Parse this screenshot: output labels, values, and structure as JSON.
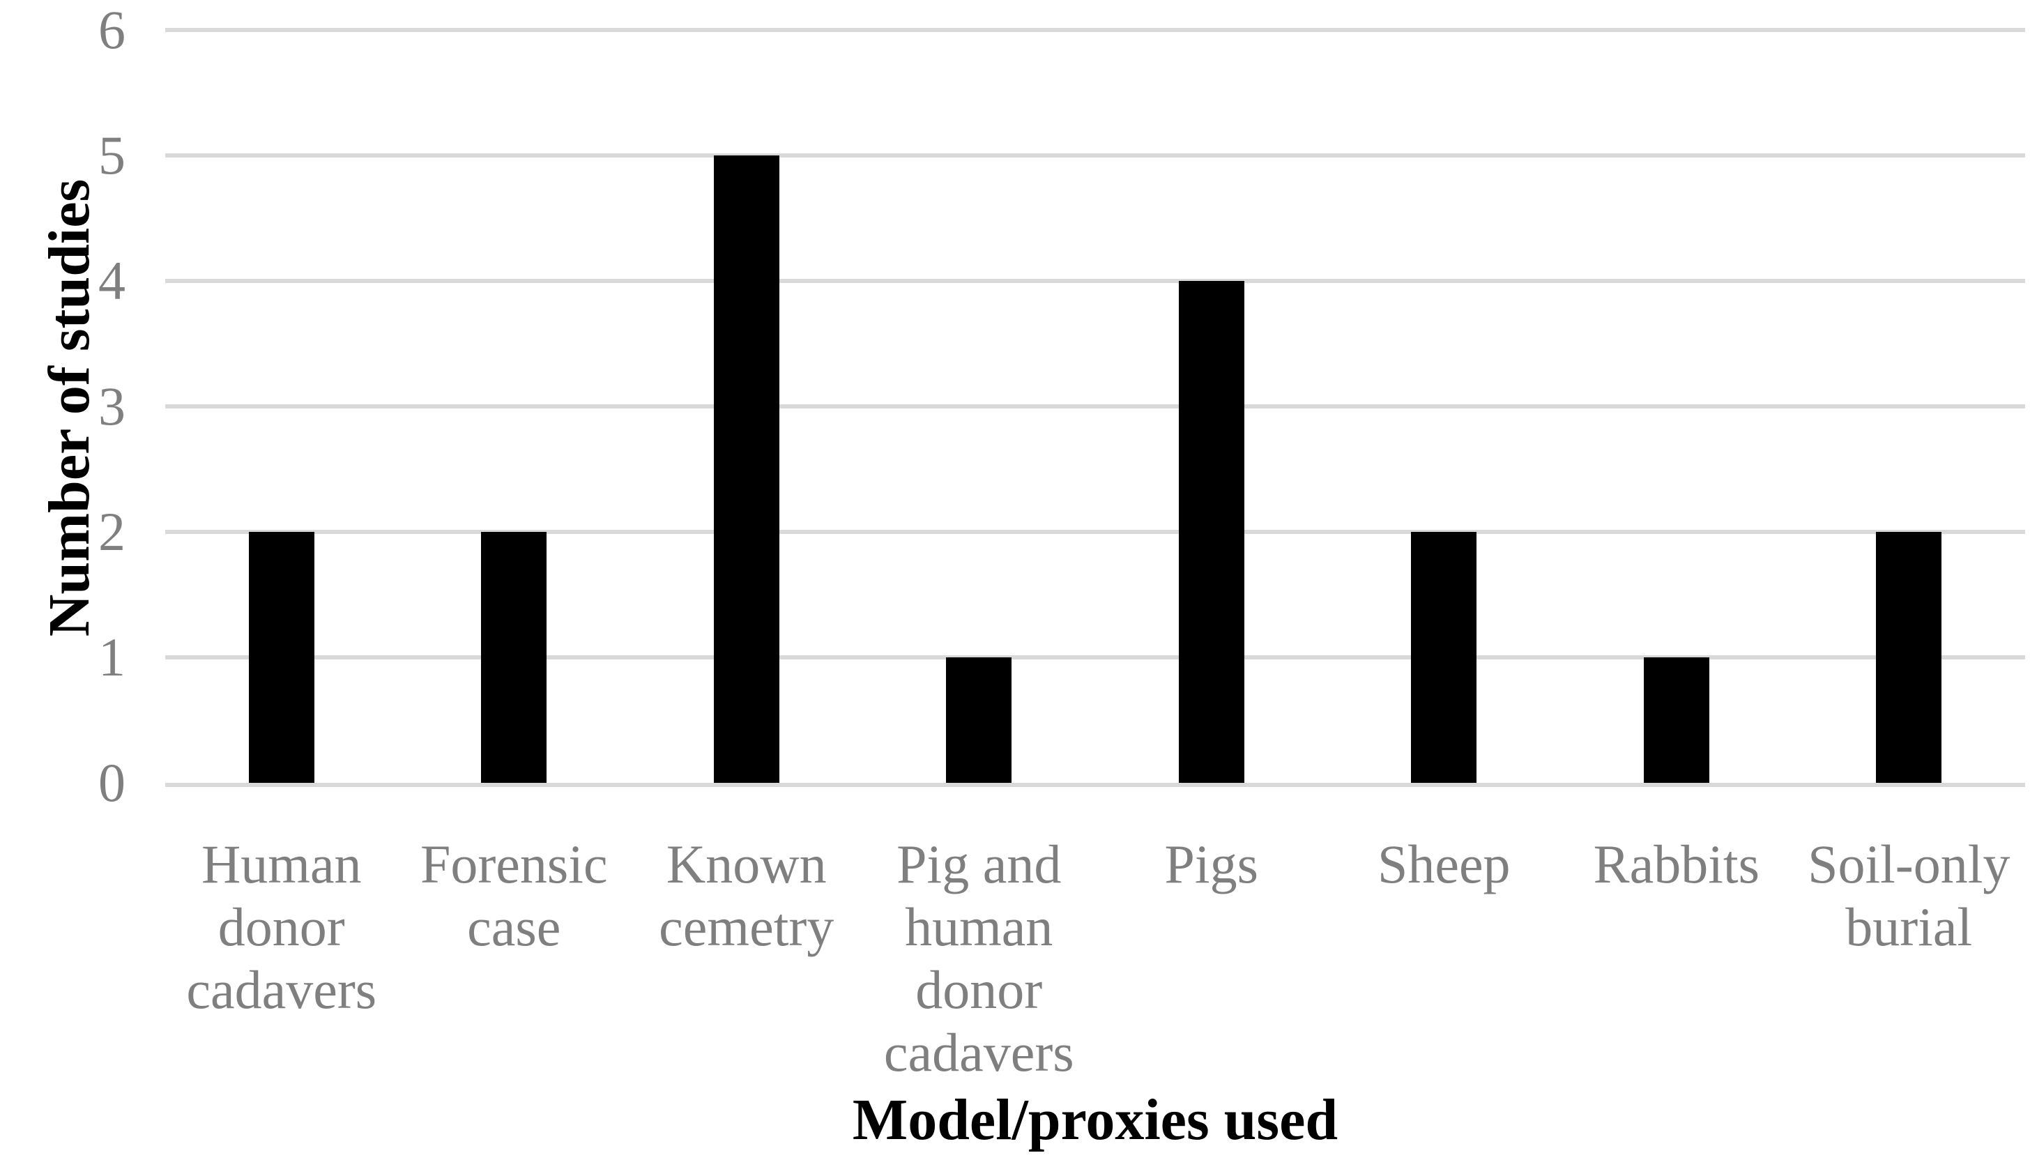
{
  "chart_data": {
    "type": "bar",
    "categories": [
      "Human donor cadavers",
      "Forensic case",
      "Known cemetry",
      "Pig and human donor cadavers",
      "Pigs",
      "Sheep",
      "Rabbits",
      "Soil-only burial"
    ],
    "values": [
      2,
      2,
      5,
      1,
      4,
      2,
      1,
      2
    ],
    "title": "",
    "xlabel": "Model/proxies used",
    "ylabel": "Number of studies",
    "ylim": [
      0,
      6
    ],
    "yticks": [
      0,
      1,
      2,
      3,
      4,
      5,
      6
    ],
    "grid": true,
    "legend_position": "none",
    "bar_color": "#000000",
    "gridline_color": "#d9d9d9",
    "tick_label_color": "#7f7f7f",
    "axis_title_color": "#000000"
  }
}
